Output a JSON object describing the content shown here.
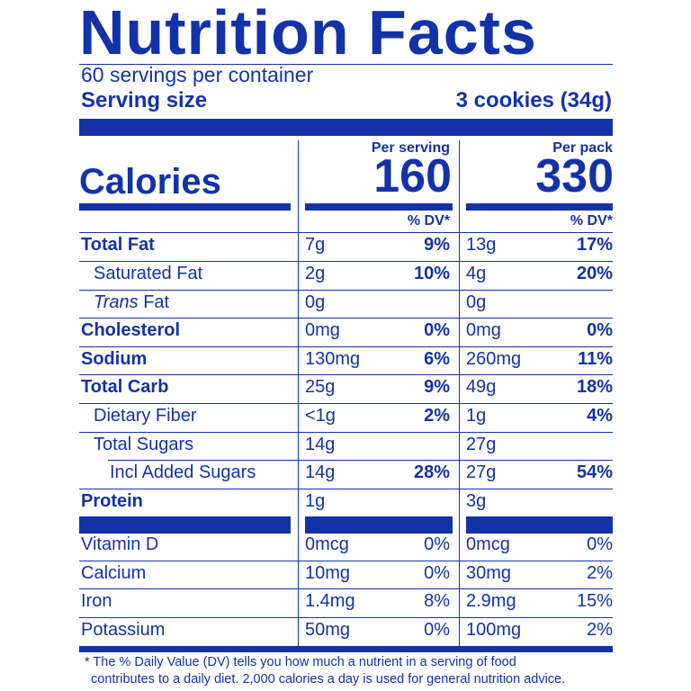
{
  "title": "Nutrition Facts",
  "servings_per_container": "60 servings per container",
  "serving_size_label": "Serving size",
  "serving_size_value": "3 cookies (34g)",
  "col1_header": "Per serving",
  "col2_header": "Per pack",
  "calories_label": "Calories",
  "calories_serving": "160",
  "calories_pack": "330",
  "dv_header": "% DV*",
  "nutrients": [
    {
      "name": "Total Fat",
      "serv": "7g",
      "serv_dv": "9%",
      "pack": "13g",
      "pack_dv": "17%"
    },
    {
      "name": "Saturated Fat",
      "serv": "2g",
      "serv_dv": "10%",
      "pack": "4g",
      "pack_dv": "20%"
    },
    {
      "name_italic": "Trans",
      "name_rest": " Fat",
      "serv": "0g",
      "serv_dv": "",
      "pack": "0g",
      "pack_dv": ""
    },
    {
      "name": "Cholesterol",
      "serv": "0mg",
      "serv_dv": "0%",
      "pack": "0mg",
      "pack_dv": "0%"
    },
    {
      "name": "Sodium",
      "serv": "130mg",
      "serv_dv": "6%",
      "pack": "260mg",
      "pack_dv": "11%"
    },
    {
      "name": "Total Carb",
      "serv": "25g",
      "serv_dv": "9%",
      "pack": "49g",
      "pack_dv": "18%"
    },
    {
      "name": "Dietary Fiber",
      "serv": "<1g",
      "serv_dv": "2%",
      "pack": "1g",
      "pack_dv": "4%"
    },
    {
      "name": "Total Sugars",
      "serv": "14g",
      "serv_dv": "",
      "pack": "27g",
      "pack_dv": ""
    },
    {
      "name": "Incl Added Sugars",
      "serv": "14g",
      "serv_dv": "28%",
      "pack": "27g",
      "pack_dv": "54%"
    },
    {
      "name": "Protein",
      "serv": "1g",
      "serv_dv": "",
      "pack": "3g",
      "pack_dv": ""
    }
  ],
  "vitamins": [
    {
      "name": "Vitamin D",
      "serv": "0mcg",
      "serv_dv": "0%",
      "pack": "0mcg",
      "pack_dv": "0%"
    },
    {
      "name": "Calcium",
      "serv": "10mg",
      "serv_dv": "0%",
      "pack": "30mg",
      "pack_dv": "2%"
    },
    {
      "name": "Iron",
      "serv": "1.4mg",
      "serv_dv": "8%",
      "pack": "2.9mg",
      "pack_dv": "15%"
    },
    {
      "name": "Potassium",
      "serv": "50mg",
      "serv_dv": "0%",
      "pack": "100mg",
      "pack_dv": "2%"
    }
  ],
  "footnote_line1": "* The % Daily Value (DV) tells you how much a nutrient in a serving of food",
  "footnote_line2": "contributes to a daily diet. 2,000 calories a day is used for general nutrition advice.",
  "ink_color": "#1432a8"
}
